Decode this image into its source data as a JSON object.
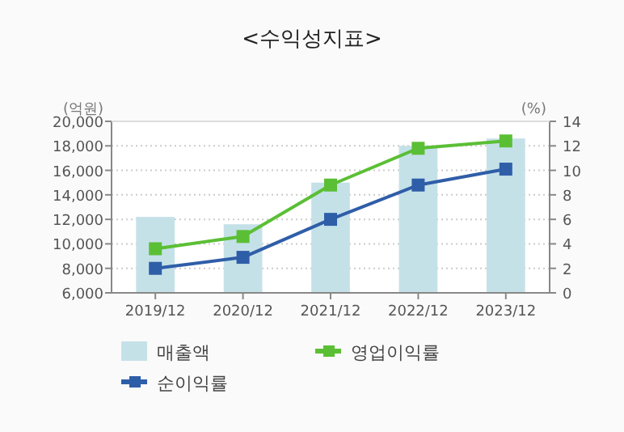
{
  "chart_data": {
    "type": "bar",
    "title": "<수익성지표>",
    "ylabel": "(억원)",
    "y2label": "(%)",
    "categories": [
      "2019/12",
      "2020/12",
      "2021/12",
      "2022/12",
      "2023/12"
    ],
    "series": [
      {
        "name": "매출액",
        "color": "#c5e1e8",
        "values": [
          12200,
          11600,
          15000,
          18000,
          18600
        ]
      },
      {
        "name": "영업이익률",
        "type": "line",
        "axis": "y2",
        "color": "#5bbf35",
        "values": [
          3.6,
          4.6,
          8.8,
          11.8,
          12.4
        ]
      },
      {
        "name": "순이익률",
        "type": "line",
        "axis": "y2",
        "color": "#2f5ea8",
        "values": [
          2.0,
          2.9,
          6.0,
          8.8,
          10.1
        ]
      }
    ],
    "ylim": [
      6000,
      20000
    ],
    "yticks": [
      {
        "value": 6000,
        "label": "6,000"
      },
      {
        "value": 8000,
        "label": "8,000"
      },
      {
        "value": 10000,
        "label": "10,000"
      },
      {
        "value": 12000,
        "label": "12,000"
      },
      {
        "value": 14000,
        "label": "14,000"
      },
      {
        "value": 16000,
        "label": "16,000"
      },
      {
        "value": 18000,
        "label": "18,000"
      },
      {
        "value": 20000,
        "label": "20,000"
      }
    ],
    "y2lim": [
      0,
      14
    ],
    "y2ticks": [
      0,
      2,
      4,
      6,
      8,
      10,
      12,
      14
    ],
    "grid": "y",
    "legend": "bottom",
    "marker": "square",
    "line_style": "solid"
  }
}
